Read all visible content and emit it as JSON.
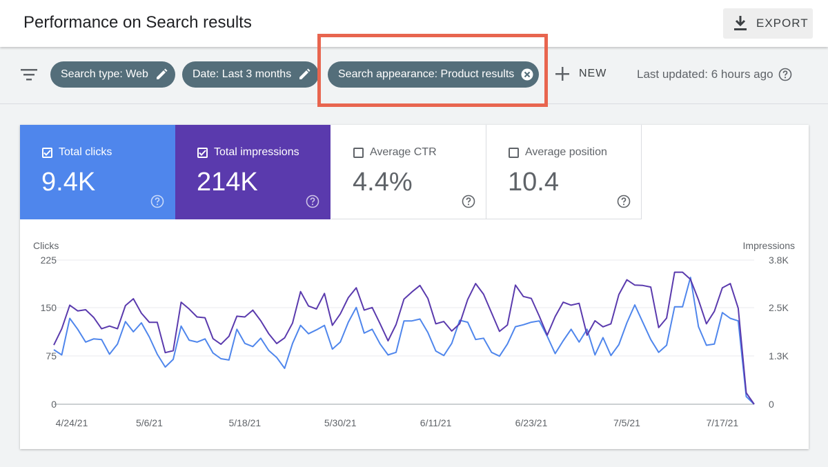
{
  "header": {
    "title": "Performance on Search results",
    "export_label": "EXPORT"
  },
  "filters": {
    "chips": [
      {
        "label": "Search type: Web",
        "icon": "pencil-icon"
      },
      {
        "label": "Date: Last 3 months",
        "icon": "pencil-icon"
      },
      {
        "label": "Search appearance: Product results",
        "icon": "close-circle-icon"
      }
    ],
    "new_label": "NEW",
    "last_updated": "Last updated: 6 hours ago"
  },
  "colors": {
    "clicks": "#4f86ec",
    "impressions": "#5a3aad",
    "chip": "#546e7a",
    "highlight": "#e8654f"
  },
  "metrics": [
    {
      "label": "Total clicks",
      "value": "9.4K",
      "checked": true
    },
    {
      "label": "Total impressions",
      "value": "214K",
      "checked": true
    },
    {
      "label": "Average CTR",
      "value": "4.4%",
      "checked": false
    },
    {
      "label": "Average position",
      "value": "10.4",
      "checked": false
    }
  ],
  "chart_data": {
    "type": "line",
    "ylabel_left": "Clicks",
    "ylabel_right": "Impressions",
    "y_left_ticks": [
      "225",
      "150",
      "75",
      "0"
    ],
    "y_right_ticks": [
      "3.8K",
      "2.5K",
      "1.3K",
      "0"
    ],
    "ylim_left": [
      0,
      225
    ],
    "ylim_right": [
      0,
      3800
    ],
    "x_ticks": [
      "4/24/21",
      "5/6/21",
      "5/18/21",
      "5/30/21",
      "6/11/21",
      "6/23/21",
      "7/5/21",
      "7/17/21"
    ],
    "x_start": "4/24/21",
    "grid": true,
    "series": [
      {
        "name": "Clicks",
        "axis": "left",
        "values": [
          85,
          77,
          134,
          117,
          97,
          102,
          101,
          78,
          94,
          129,
          113,
          127,
          105,
          78,
          58,
          70,
          122,
          100,
          97,
          102,
          80,
          71,
          69,
          117,
          95,
          90,
          103,
          84,
          73,
          56,
          95,
          123,
          110,
          116,
          123,
          86,
          97,
          128,
          151,
          111,
          117,
          94,
          77,
          81,
          130,
          130,
          133,
          112,
          83,
          76,
          95,
          131,
          128,
          101,
          103,
          81,
          75,
          94,
          121,
          124,
          128,
          130,
          106,
          79,
          99,
          117,
          97,
          117,
          77,
          104,
          76,
          93,
          127,
          155,
          128,
          101,
          81,
          92,
          152,
          152,
          198,
          121,
          92,
          94,
          143,
          134,
          130,
          12,
          0
        ]
      },
      {
        "name": "Impressions",
        "axis": "right",
        "values": [
          1560,
          1990,
          2610,
          2460,
          2490,
          2290,
          1990,
          2060,
          1990,
          2600,
          2780,
          2400,
          2160,
          2160,
          1360,
          1410,
          2690,
          2510,
          2300,
          2280,
          1730,
          1580,
          1790,
          2320,
          2300,
          2480,
          2200,
          1860,
          1600,
          1750,
          2140,
          2970,
          2590,
          2510,
          2920,
          2080,
          2380,
          2810,
          3070,
          2480,
          2550,
          2120,
          1670,
          2100,
          2770,
          2960,
          3130,
          2790,
          2120,
          2180,
          1930,
          2120,
          2760,
          3180,
          2900,
          2410,
          1920,
          2090,
          3140,
          2840,
          2790,
          2320,
          1820,
          2310,
          2690,
          2610,
          2660,
          1820,
          2200,
          2040,
          2120,
          2890,
          3280,
          3140,
          3130,
          3090,
          2020,
          2270,
          3480,
          3480,
          3290,
          2750,
          2120,
          2450,
          3070,
          3180,
          2530,
          300,
          0
        ]
      }
    ]
  }
}
